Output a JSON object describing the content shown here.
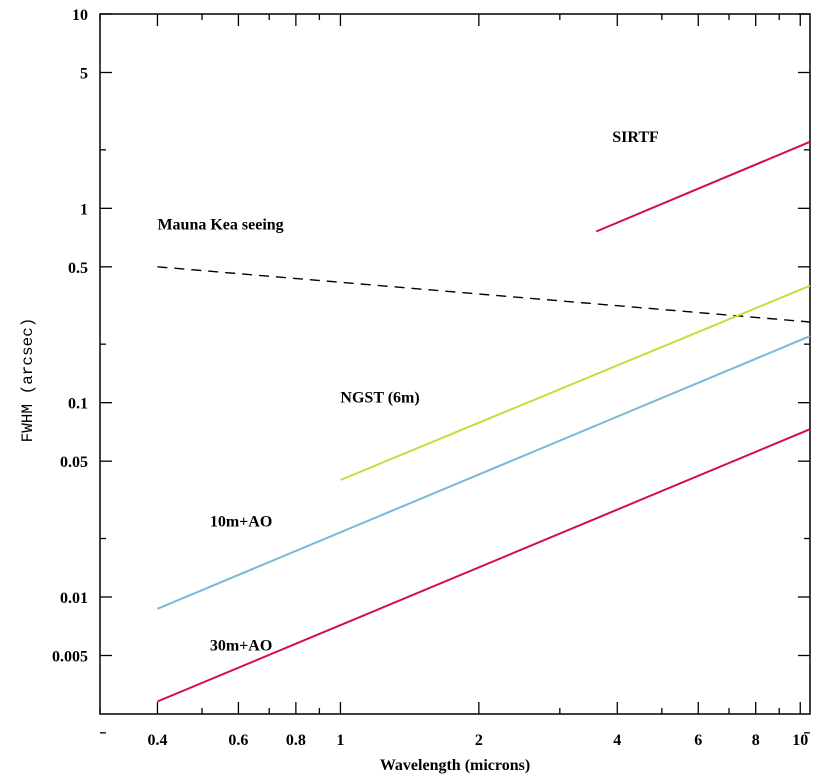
{
  "chart_data": {
    "type": "line",
    "xlabel": "Wavelength (microns)",
    "ylabel": "FWHM (arcsec)",
    "xscale": "log",
    "yscale": "log",
    "xlim": [
      0.3,
      10.5
    ],
    "ylim": [
      0.0025,
      10
    ],
    "x_ticks": [
      {
        "value": 0.4,
        "label": "0.4"
      },
      {
        "value": 0.6,
        "label": "0.6"
      },
      {
        "value": 0.8,
        "label": "0.8"
      },
      {
        "value": 1,
        "label": "1"
      },
      {
        "value": 2,
        "label": "2"
      },
      {
        "value": 4,
        "label": "4"
      },
      {
        "value": 6,
        "label": "6"
      },
      {
        "value": 8,
        "label": "8"
      },
      {
        "value": 10,
        "label": "10"
      }
    ],
    "x_minor_ticks": [
      0.3,
      0.5,
      0.7,
      0.9,
      3,
      5,
      7,
      9
    ],
    "y_ticks": [
      {
        "value": 0.005,
        "label": "0.005"
      },
      {
        "value": 0.01,
        "label": "0.01"
      },
      {
        "value": 0.05,
        "label": "0.05"
      },
      {
        "value": 0.1,
        "label": "0.1"
      },
      {
        "value": 0.5,
        "label": "0.5"
      },
      {
        "value": 1,
        "label": "1"
      },
      {
        "value": 5,
        "label": "5"
      },
      {
        "value": 10,
        "label": "10"
      }
    ],
    "y_minor_ticks": [
      0.002,
      0.02,
      0.2,
      2
    ],
    "grid": false,
    "series": [
      {
        "name": "SIRTF",
        "color": "#d4085d",
        "style": "solid",
        "x": [
          3.6,
          10.5
        ],
        "y": [
          0.76,
          2.2
        ]
      },
      {
        "name": "Mauna Kea seeing",
        "color": "#000000",
        "style": "dashed",
        "x": [
          0.4,
          10.5
        ],
        "y": [
          0.5,
          0.26
        ]
      },
      {
        "name": "NGST (6m)",
        "color": "#c8dc3c",
        "style": "solid",
        "x": [
          1.0,
          10.5
        ],
        "y": [
          0.04,
          0.4
        ]
      },
      {
        "name": "10m+AO",
        "color": "#7ab8da",
        "style": "solid",
        "x": [
          0.4,
          10.5
        ],
        "y": [
          0.0087,
          0.22
        ]
      },
      {
        "name": "30m+AO",
        "color": "#d4085d",
        "style": "solid",
        "x": [
          0.4,
          10.5
        ],
        "y": [
          0.0029,
          0.073
        ]
      }
    ],
    "annotations": [
      {
        "text": "SIRTF",
        "x": 3.9,
        "y": 2.2
      },
      {
        "text": "Mauna Kea seeing",
        "x": 0.4,
        "y": 0.78
      },
      {
        "text": "NGST (6m)",
        "x": 1.0,
        "y": 0.1
      },
      {
        "text": "10m+AO",
        "x": 0.52,
        "y": 0.023
      },
      {
        "text": "30m+AO",
        "x": 0.52,
        "y": 0.0053
      }
    ]
  }
}
